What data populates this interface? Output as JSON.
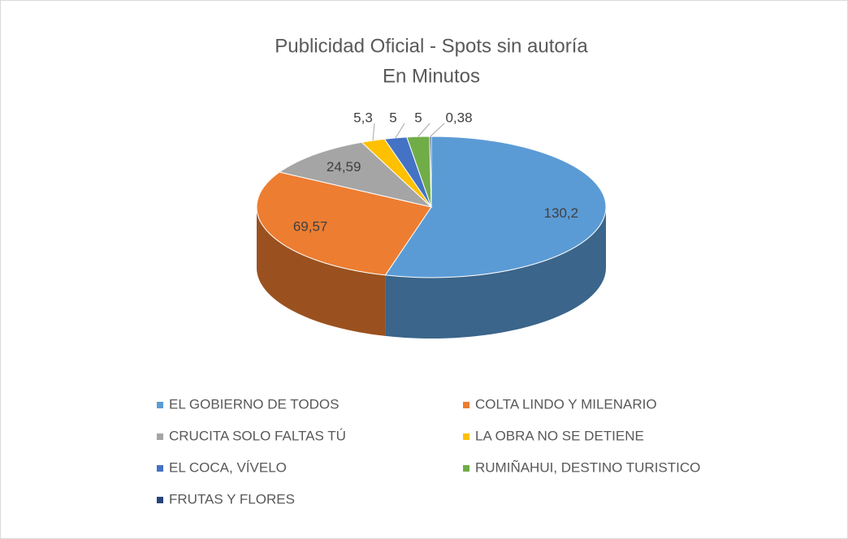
{
  "chart_data": {
    "type": "pie3d",
    "title": "Publicidad Oficial - Spots sin autoría",
    "subtitle": "En Minutos",
    "categories": [
      "EL GOBIERNO DE TODOS",
      "COLTA LINDO Y MILENARIO",
      "CRUCITA SOLO FALTAS TÚ",
      "LA OBRA NO SE DETIENE",
      "EL COCA, VÍVELO",
      "RUMIÑAHUI, DESTINO TURISTICO",
      "FRUTAS Y FLORES"
    ],
    "values": [
      130.2,
      69.57,
      24.59,
      5.3,
      5,
      5,
      0.38
    ],
    "value_labels": [
      "130,2",
      "69,57",
      "24,59",
      "5,3",
      "5",
      "5",
      "0,38"
    ],
    "colors": [
      "#5b9bd5",
      "#ed7d31",
      "#a5a5a5",
      "#ffc000",
      "#4472c4",
      "#70ad47",
      "#264478"
    ],
    "legend": "bottom"
  }
}
